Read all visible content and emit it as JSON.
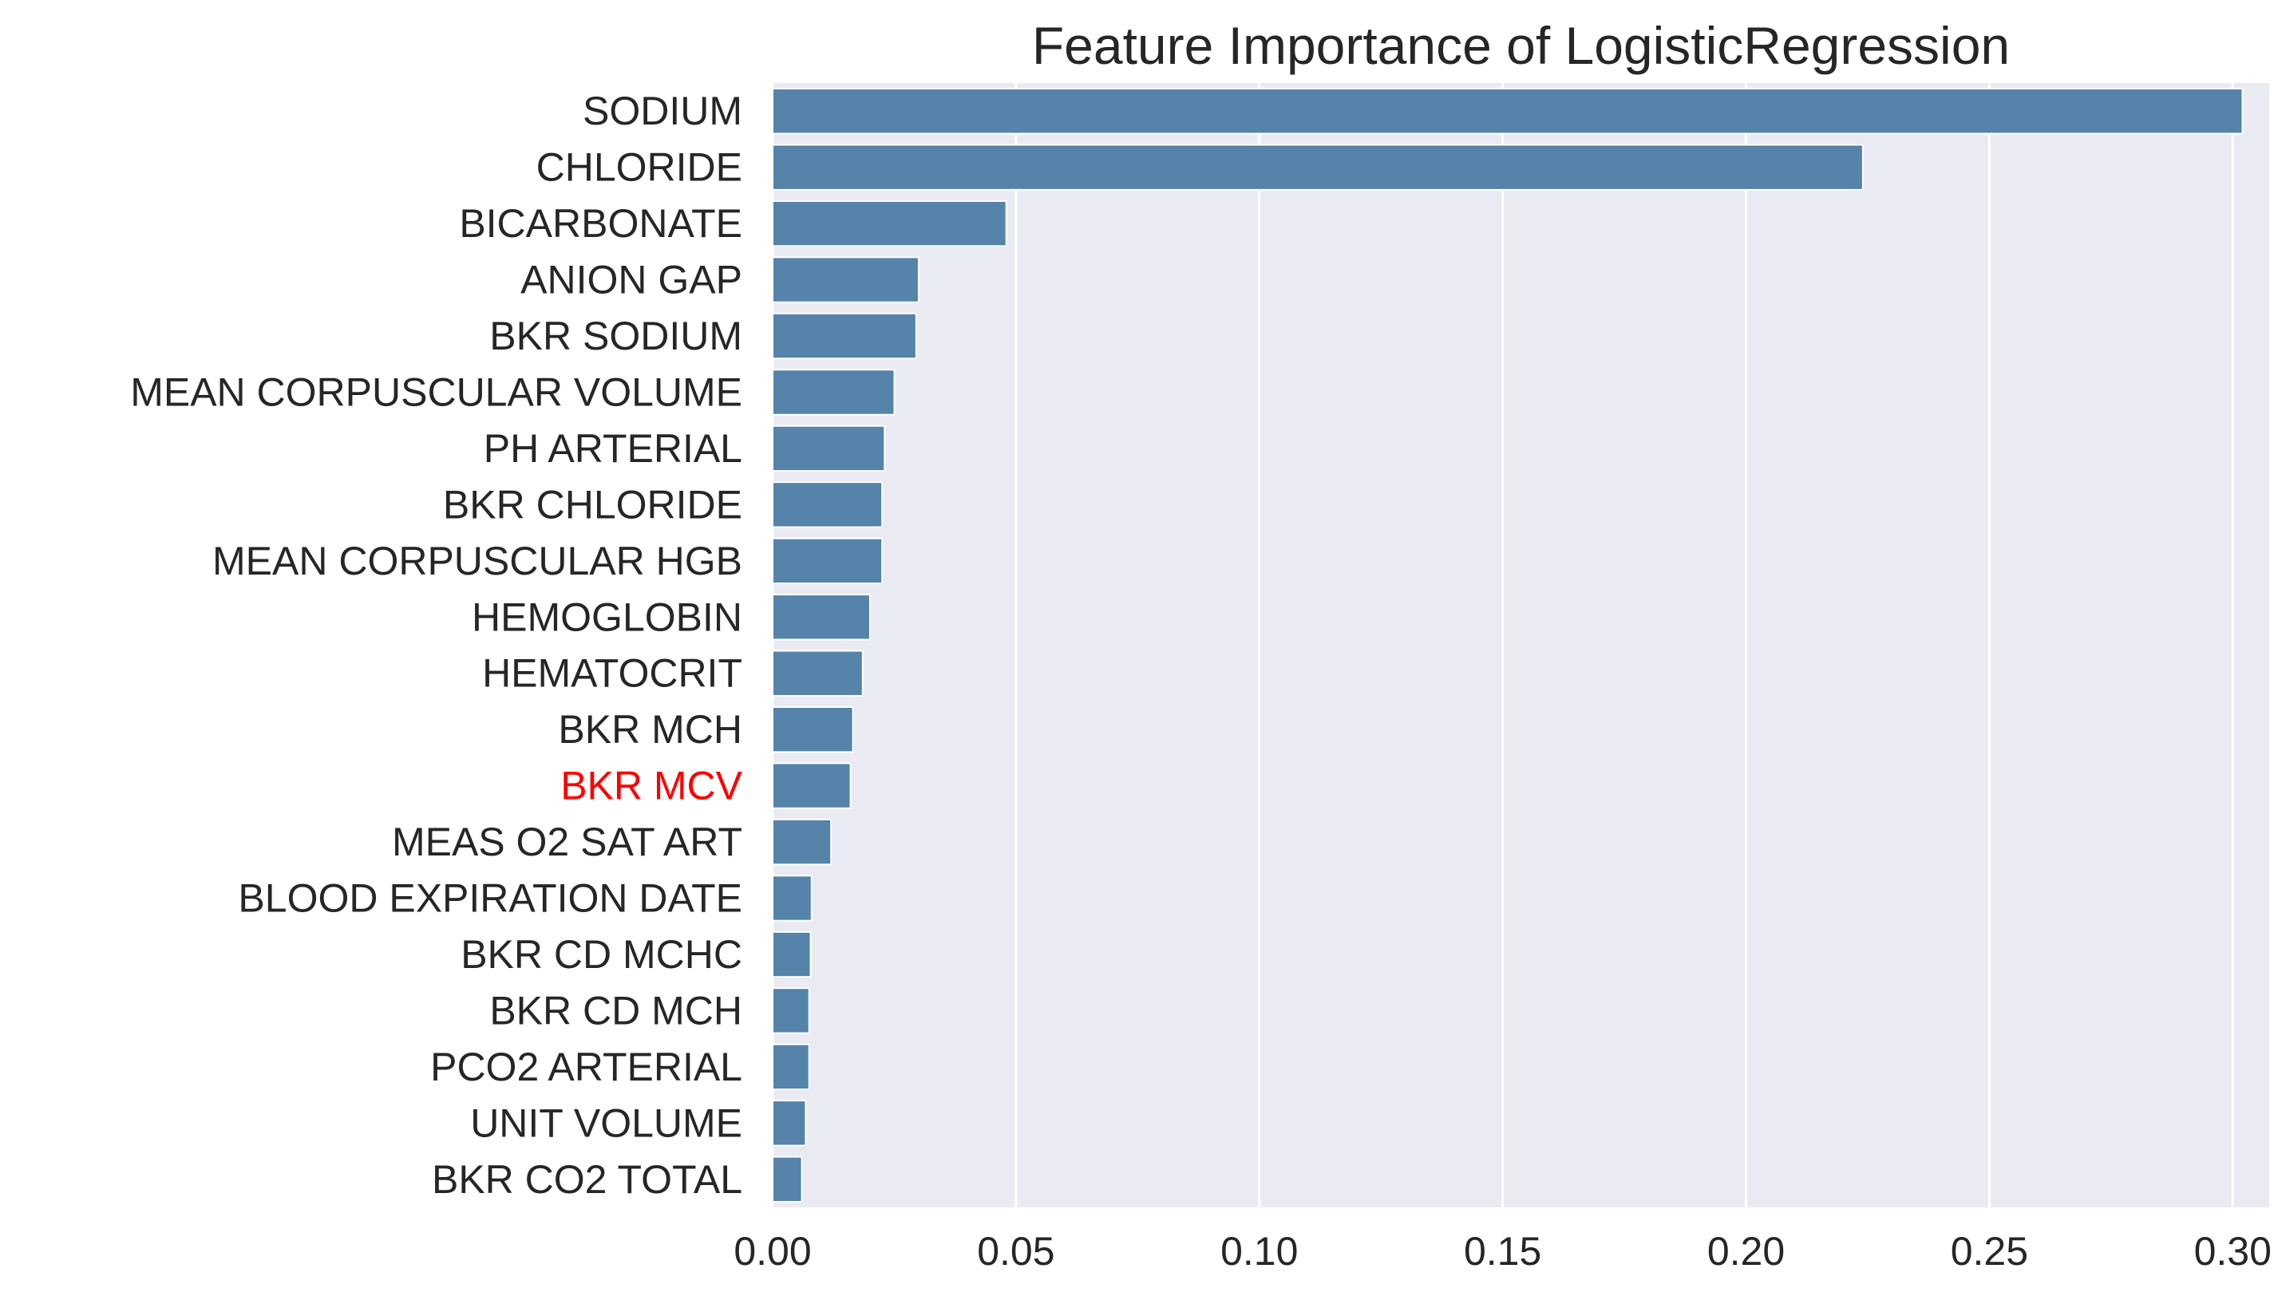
{
  "chart_data": {
    "type": "bar",
    "orientation": "horizontal",
    "title": "Feature Importance of LogisticRegression",
    "xlabel": "",
    "ylabel": "",
    "xlim": [
      0,
      0.3075
    ],
    "xticks": [
      "0.00",
      "0.05",
      "0.10",
      "0.15",
      "0.20",
      "0.25",
      "0.30"
    ],
    "grid": true,
    "categories": [
      "SODIUM",
      "CHLORIDE",
      "BICARBONATE",
      "ANION GAP",
      "BKR SODIUM",
      "MEAN CORPUSCULAR VOLUME",
      "PH ARTERIAL",
      "BKR CHLORIDE",
      "MEAN CORPUSCULAR HGB",
      "HEMOGLOBIN",
      "HEMATOCRIT",
      "BKR MCH",
      "BKR MCV",
      "MEAS O2 SAT ART",
      "BLOOD EXPIRATION DATE",
      "BKR CD MCHC",
      "BKR CD MCH",
      "PCO2 ARTERIAL",
      "UNIT VOLUME",
      "BKR CO2 TOTAL"
    ],
    "values": [
      0.302,
      0.224,
      0.048,
      0.03,
      0.0295,
      0.025,
      0.023,
      0.0225,
      0.0225,
      0.02,
      0.0185,
      0.0165,
      0.016,
      0.012,
      0.008,
      0.0078,
      0.0075,
      0.0075,
      0.0068,
      0.006
    ],
    "highlight_category": "BKR MCV",
    "colors": {
      "bar": "#5583a9",
      "background": "#eaeaf2",
      "grid": "#ffffff",
      "text": "#262626",
      "highlight_text": "#ff0000"
    }
  }
}
